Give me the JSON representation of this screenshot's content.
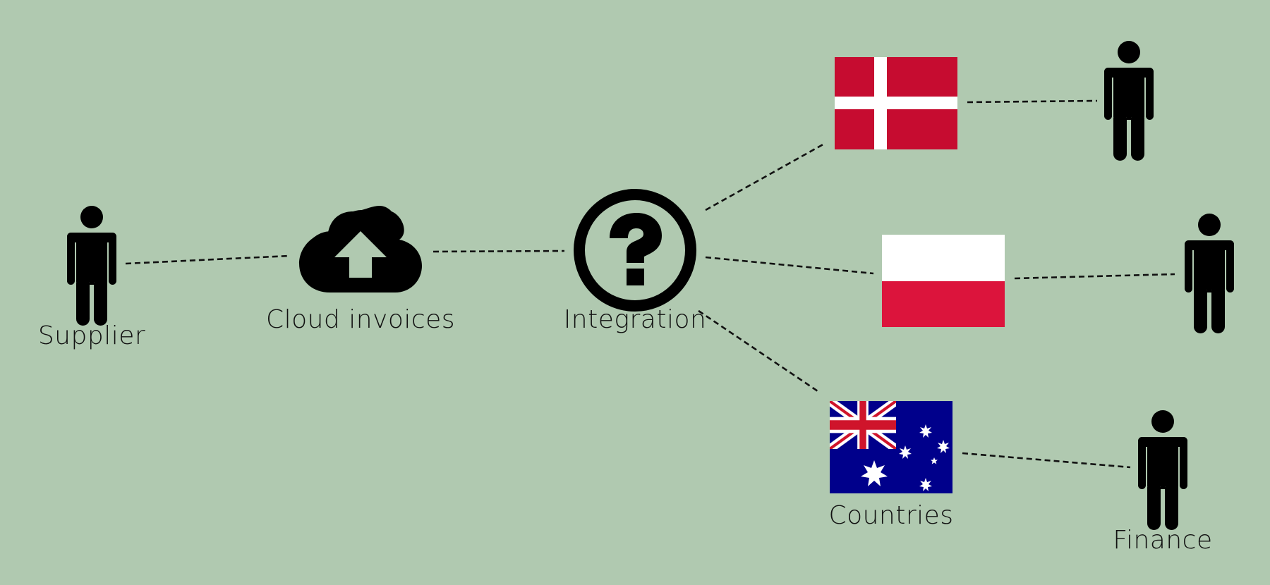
{
  "diagram": {
    "background": "#b0c9b0",
    "ink": "#000000",
    "labels": {
      "supplier": "Supplier",
      "cloud_invoices": "Cloud invoices",
      "integration": "Integration",
      "countries": "Countries",
      "finance": "Finance"
    },
    "icons": {
      "supplier": "person-icon",
      "cloud": "cloud-upload-icon",
      "integration": "question-circle-icon",
      "denmark": "denmark-flag",
      "poland": "poland-flag",
      "australia": "australia-flag",
      "recipients": "person-icon"
    },
    "flag_colors": {
      "denmark_red": "#c60c30",
      "poland_red": "#dc143c",
      "australia_blue": "#00008b",
      "union_red": "#cf142b",
      "white": "#ffffff"
    }
  }
}
